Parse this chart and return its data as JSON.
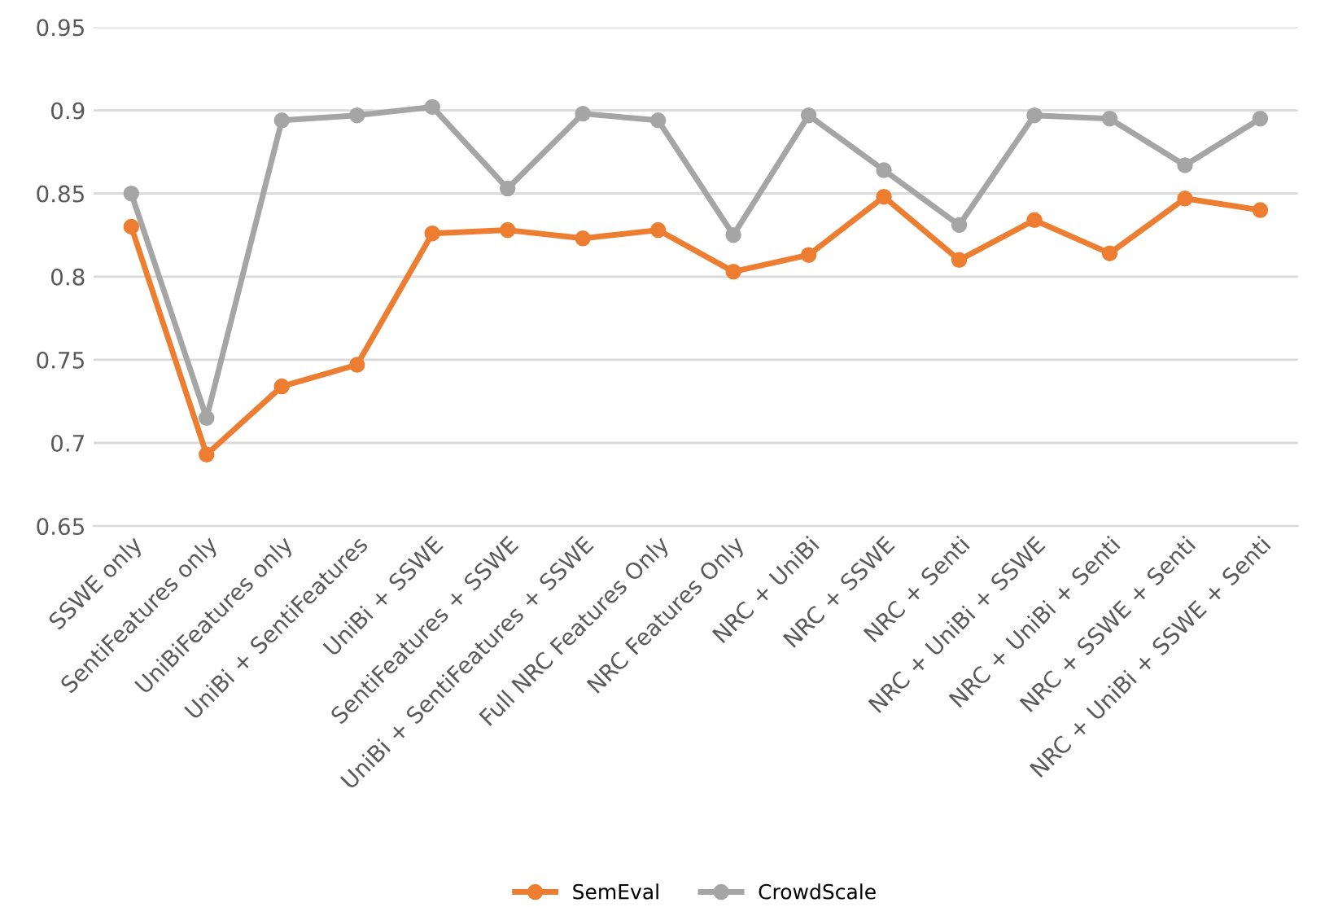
{
  "chart_data": {
    "type": "line",
    "categories": [
      "SSWE only",
      "SentiFeatures only",
      "UniBiFeatures only",
      "UniBi + SentiFeatures",
      "UniBi + SSWE",
      "SentiFeatures + SSWE",
      "UniBi + SentiFeatures + SSWE",
      "Full NRC Features Only",
      "NRC Features Only",
      "NRC + UniBi",
      "NRC + SSWE",
      "NRC + Senti",
      "NRC + UniBi + SSWE",
      "NRC + UniBi + Senti",
      "NRC + SSWE + Senti",
      "NRC + UniBi + SSWE + Senti"
    ],
    "series": [
      {
        "name": "SemEval",
        "color": "#ed7d31",
        "values": [
          0.83,
          0.693,
          0.734,
          0.747,
          0.826,
          0.828,
          0.823,
          0.828,
          0.803,
          0.813,
          0.848,
          0.81,
          0.834,
          0.814,
          0.847,
          0.84
        ]
      },
      {
        "name": "CrowdScale",
        "color": "#a5a5a5",
        "values": [
          0.85,
          0.715,
          0.894,
          0.897,
          0.902,
          0.853,
          0.898,
          0.894,
          0.825,
          0.897,
          0.864,
          0.831,
          0.897,
          0.895,
          0.867,
          0.895
        ]
      }
    ],
    "ylim": [
      0.65,
      0.95
    ],
    "yticks": [
      {
        "value": 0.65,
        "label": "0.65"
      },
      {
        "value": 0.7,
        "label": "0.7"
      },
      {
        "value": 0.75,
        "label": "0.75"
      },
      {
        "value": 0.8,
        "label": "0.8"
      },
      {
        "value": 0.85,
        "label": "0.85"
      },
      {
        "value": 0.9,
        "label": "0.9"
      },
      {
        "value": 0.95,
        "label": "0.95"
      }
    ],
    "grid": "y",
    "legend": "bottom",
    "marker": "circle",
    "line_style": "solid"
  }
}
